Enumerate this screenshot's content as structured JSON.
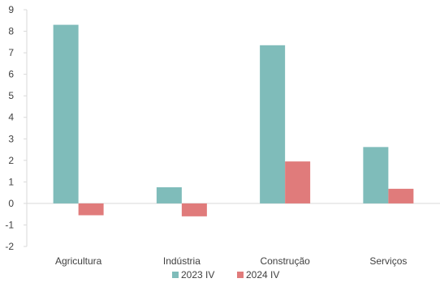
{
  "chart_data": {
    "type": "bar",
    "categories": [
      "Agricultura",
      "Indústria",
      "Construção",
      "Serviços"
    ],
    "series": [
      {
        "name": "2023 IV",
        "values": [
          8.3,
          0.75,
          7.35,
          2.62
        ],
        "color": "#7fbcba"
      },
      {
        "name": "2024 IV",
        "values": [
          -0.55,
          -0.6,
          1.95,
          0.68
        ],
        "color": "#e07b7b"
      }
    ],
    "title": "",
    "xlabel": "",
    "ylabel": "",
    "ylim": [
      -2,
      9
    ],
    "yticks": [
      -2,
      -1,
      0,
      1,
      2,
      3,
      4,
      5,
      6,
      7,
      8,
      9
    ],
    "ytick_labels": [
      "-2",
      "-1",
      "0",
      "1",
      "2",
      "3",
      "4",
      "5",
      "6",
      "7",
      "8",
      "9"
    ],
    "grid": false,
    "legend_position": "bottom"
  }
}
